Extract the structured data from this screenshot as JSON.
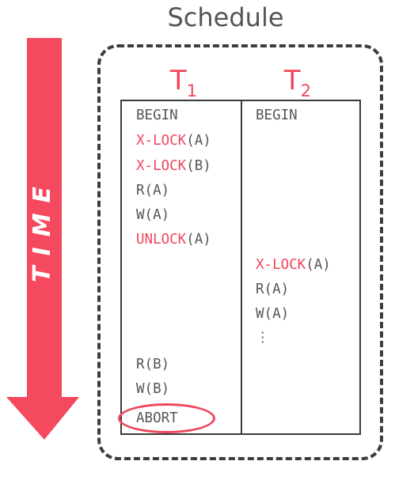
{
  "title": "Schedule",
  "time_label": "TIME",
  "colors": {
    "accent": "#f0455c",
    "text": "#555555",
    "border": "#3a3a3a"
  },
  "columns": [
    {
      "name": "T",
      "subscript": "1"
    },
    {
      "name": "T",
      "subscript": "2"
    }
  ],
  "t1_ops": [
    {
      "keyword": "",
      "text": "BEGIN"
    },
    {
      "keyword": "X-LOCK",
      "text": "(A)"
    },
    {
      "keyword": "X-LOCK",
      "text": "(B)"
    },
    {
      "keyword": "",
      "text": "R(A)"
    },
    {
      "keyword": "",
      "text": "W(A)"
    },
    {
      "keyword": "UNLOCK",
      "text": "(A)"
    },
    {
      "keyword": "",
      "text": "R(B)"
    },
    {
      "keyword": "",
      "text": "W(B)"
    },
    {
      "keyword": "",
      "text": "ABORT"
    }
  ],
  "t2_ops": [
    {
      "keyword": "",
      "text": "BEGIN"
    },
    {
      "keyword": "X-LOCK",
      "text": "(A)"
    },
    {
      "keyword": "",
      "text": "R(A)"
    },
    {
      "keyword": "",
      "text": "W(A)"
    },
    {
      "keyword": "",
      "text": "⋮"
    }
  ]
}
